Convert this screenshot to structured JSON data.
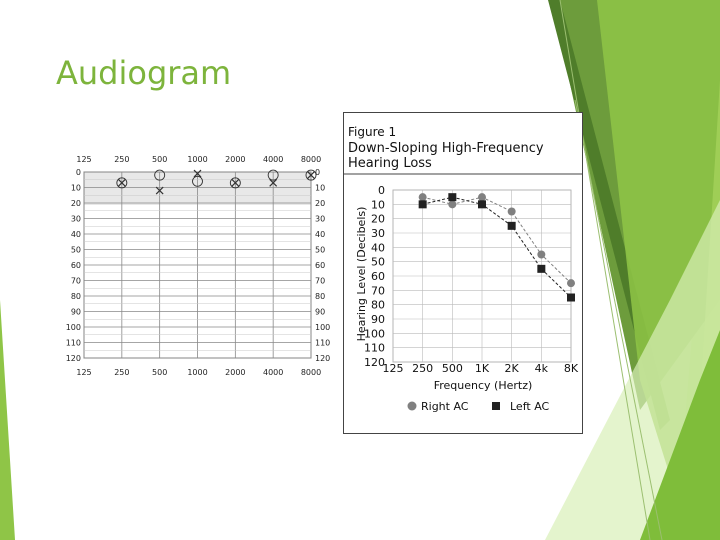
{
  "slide": {
    "title": "Audiogram"
  },
  "chart_data": [
    {
      "type": "scatter",
      "freq_top": [
        "125",
        "250",
        "500",
        "1000",
        "2000",
        "4000",
        "8000"
      ],
      "freq_bottom": [
        "125",
        "250",
        "500",
        "1000",
        "2000",
        "4000",
        "8000"
      ],
      "db_left": [
        "0",
        "10",
        "20",
        "30",
        "40",
        "50",
        "60",
        "70",
        "80",
        "90",
        "100",
        "110",
        "120"
      ],
      "db_right": [
        "0",
        "10",
        "20",
        "30",
        "40",
        "50",
        "60",
        "70",
        "80",
        "90",
        "100",
        "110",
        "120"
      ],
      "ylim": [
        0,
        120
      ],
      "right_ear_o": [
        {
          "freq": "250",
          "db": 7
        },
        {
          "freq": "500",
          "db": 2
        },
        {
          "freq": "1000",
          "db": 6
        },
        {
          "freq": "2000",
          "db": 7
        },
        {
          "freq": "4000",
          "db": 2
        },
        {
          "freq": "8000",
          "db": 2
        }
      ],
      "left_ear_x": [
        {
          "freq": "250",
          "db": 7
        },
        {
          "freq": "500",
          "db": 12
        },
        {
          "freq": "1000",
          "db": 1
        },
        {
          "freq": "2000",
          "db": 7
        },
        {
          "freq": "4000",
          "db": 7
        },
        {
          "freq": "8000",
          "db": 2
        }
      ]
    },
    {
      "type": "line",
      "figure_label": "Figure 1",
      "title": "Down-Sloping High-Frequency Hearing Loss",
      "title_lines": [
        "Down-Sloping High-Frequency",
        "Hearing Loss"
      ],
      "xlabel": "Frequency (Hertz)",
      "ylabel": "Hearing Level (Decibels)",
      "categories": [
        "125",
        "250",
        "500",
        "1K",
        "2K",
        "4k",
        "8K"
      ],
      "y_ticks": [
        "0",
        "10",
        "20",
        "30",
        "40",
        "50",
        "60",
        "70",
        "80",
        "90",
        "100",
        "110",
        "120"
      ],
      "ylim": [
        0,
        120
      ],
      "series": [
        {
          "name": "Right AC",
          "marker": "circle",
          "color": "#808080",
          "values": [
            null,
            5,
            10,
            5,
            15,
            45,
            65
          ]
        },
        {
          "name": "Left AC",
          "marker": "square",
          "color": "#222222",
          "values": [
            null,
            10,
            5,
            10,
            25,
            55,
            75
          ]
        }
      ]
    }
  ]
}
